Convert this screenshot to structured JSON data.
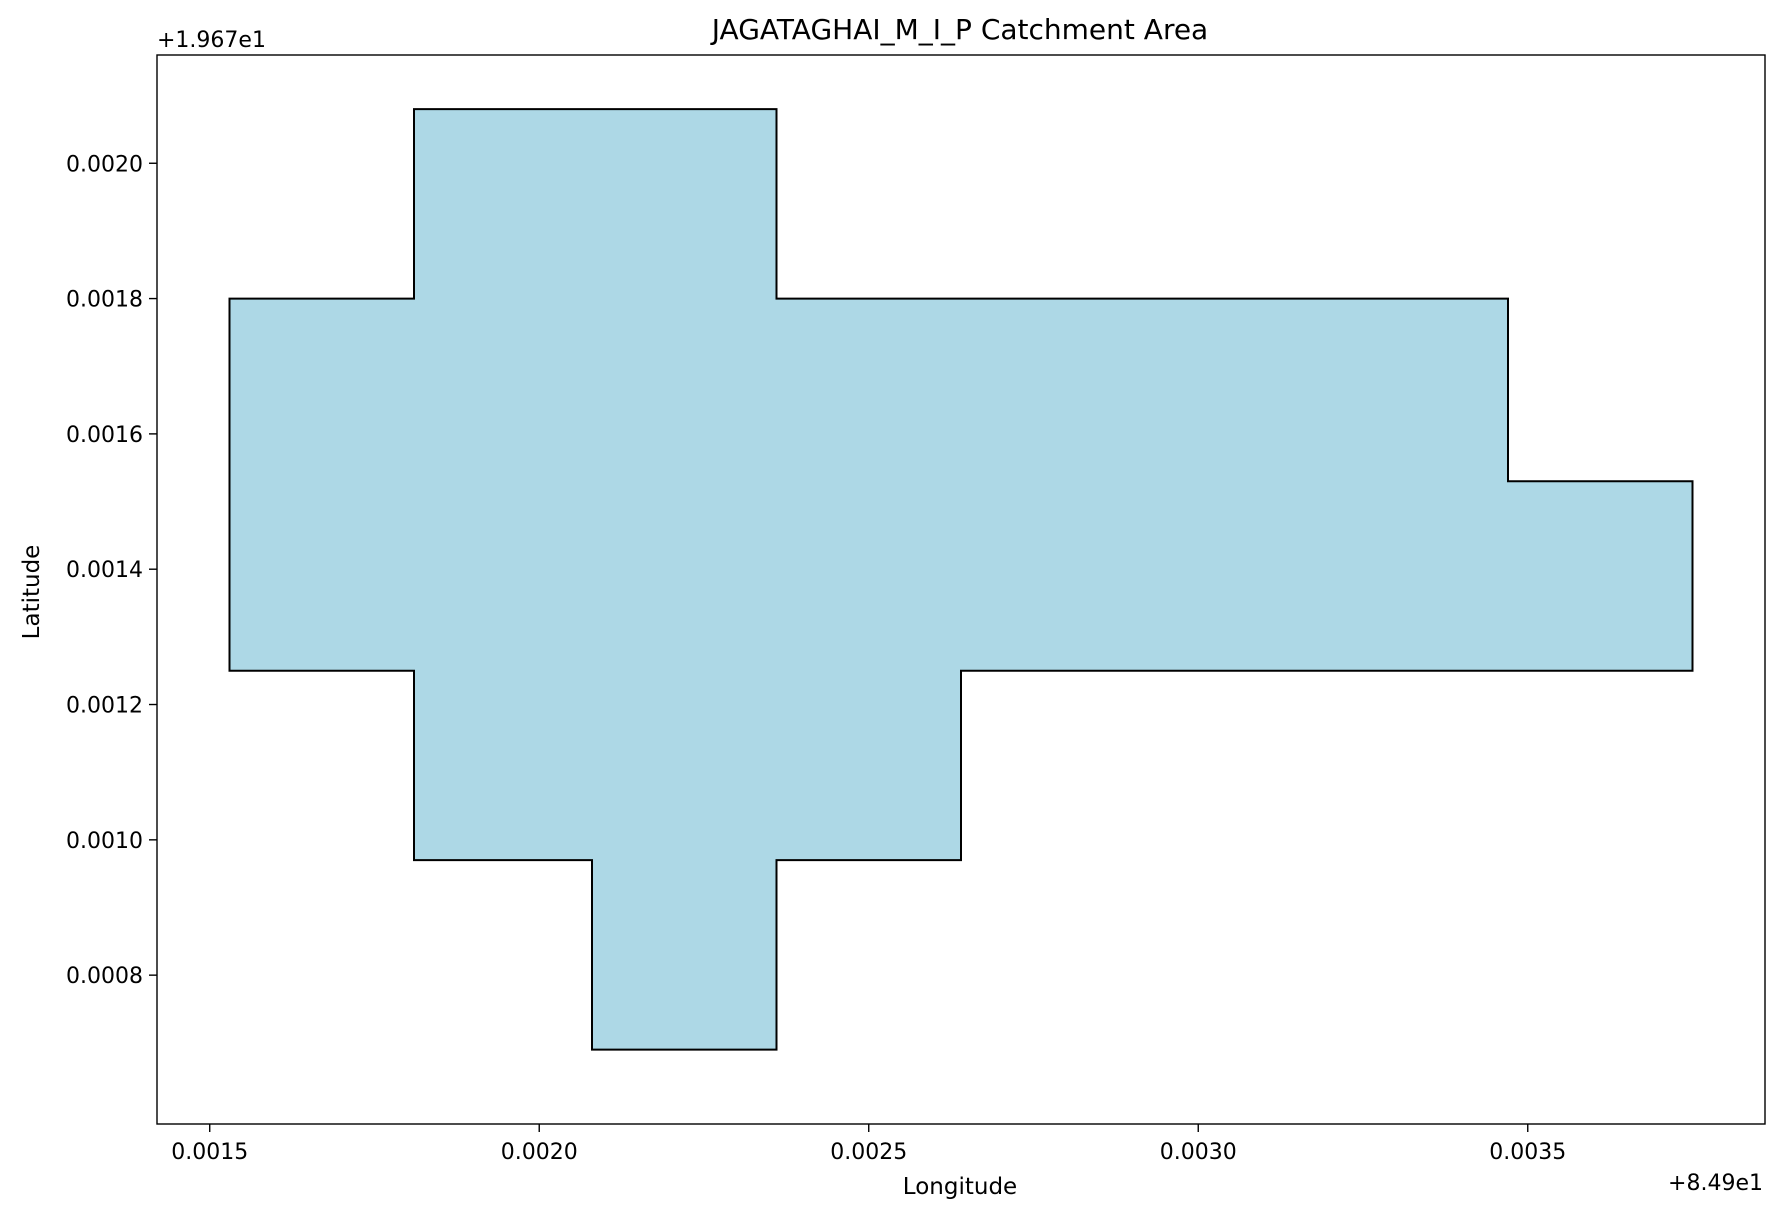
{
  "chart_data": {
    "type": "area",
    "title": "JAGATAGHAI_M_I_P Catchment Area",
    "xlabel": "Longitude",
    "ylabel": "Latitude",
    "x_offset_label": "+8.49e1",
    "y_offset_label": "+1.967e1",
    "x_offset": 84.9,
    "y_offset": 19.67,
    "xlim": [
      0.00142,
      0.00386
    ],
    "ylim": [
      0.00058,
      0.00216
    ],
    "x_ticks": [
      0.0015,
      0.002,
      0.0025,
      0.003,
      0.0035
    ],
    "x_tick_labels": [
      "0.0015",
      "0.0020",
      "0.0025",
      "0.0030",
      "0.0035"
    ],
    "y_ticks": [
      0.0008,
      0.001,
      0.0012,
      0.0014,
      0.0016,
      0.0018,
      0.002
    ],
    "y_tick_labels": [
      "0.0008",
      "0.0010",
      "0.0012",
      "0.0014",
      "0.0016",
      "0.0018",
      "0.0020"
    ],
    "grid": false,
    "legend": "none",
    "fill_color": "#add8e6",
    "edge_color": "#000000",
    "polygon": {
      "x": [
        0.00181,
        0.00181,
        0.00236,
        0.00236,
        0.00347,
        0.00347,
        0.00375,
        0.00375,
        0.00264,
        0.00264,
        0.00236,
        0.00236,
        0.00208,
        0.00208,
        0.00181,
        0.00181,
        0.00153,
        0.00153,
        0.00181
      ],
      "y": [
        0.0018,
        0.00208,
        0.00208,
        0.0018,
        0.0018,
        0.00153,
        0.00153,
        0.00125,
        0.00125,
        0.00097,
        0.00097,
        0.00069,
        0.00069,
        0.00097,
        0.00097,
        0.00125,
        0.00125,
        0.0018,
        0.0018
      ]
    }
  }
}
